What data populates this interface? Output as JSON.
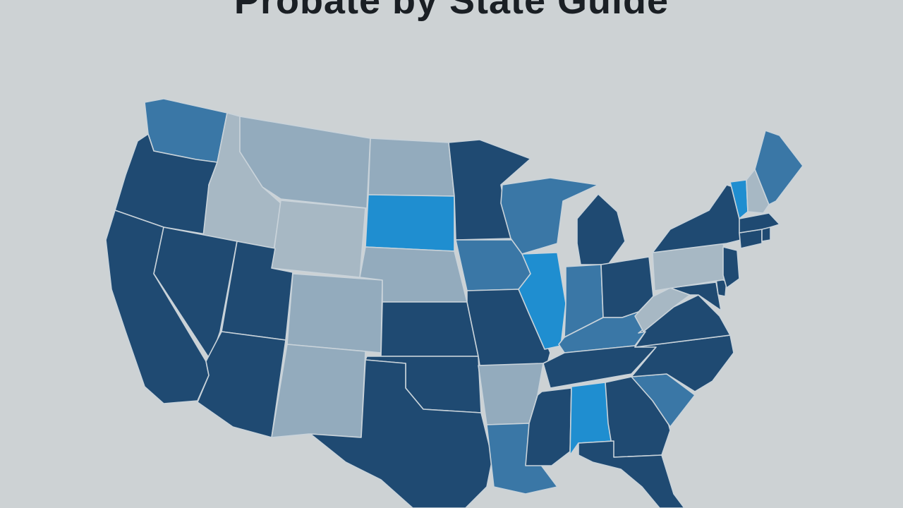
{
  "title": "Probate by State Guide",
  "colors": {
    "background": "#cdd2d4",
    "dark": "#1f4a72",
    "medium": "#3a77a6",
    "bright": "#1f8ed0",
    "light": "#93abbd",
    "pale": "#a7b8c4",
    "border": "#c9d3da"
  },
  "states": [
    {
      "name": "Washington",
      "shade": "medium"
    },
    {
      "name": "Oregon",
      "shade": "dark"
    },
    {
      "name": "California",
      "shade": "dark"
    },
    {
      "name": "Idaho",
      "shade": "pale"
    },
    {
      "name": "Nevada",
      "shade": "dark"
    },
    {
      "name": "Montana",
      "shade": "light"
    },
    {
      "name": "Wyoming",
      "shade": "pale"
    },
    {
      "name": "Utah",
      "shade": "dark"
    },
    {
      "name": "Arizona",
      "shade": "dark"
    },
    {
      "name": "Colorado",
      "shade": "light"
    },
    {
      "name": "New Mexico",
      "shade": "light"
    },
    {
      "name": "North Dakota",
      "shade": "light"
    },
    {
      "name": "South Dakota",
      "shade": "bright"
    },
    {
      "name": "Nebraska",
      "shade": "light"
    },
    {
      "name": "Kansas",
      "shade": "dark"
    },
    {
      "name": "Oklahoma",
      "shade": "dark"
    },
    {
      "name": "Texas",
      "shade": "dark"
    },
    {
      "name": "Minnesota",
      "shade": "dark"
    },
    {
      "name": "Iowa",
      "shade": "medium"
    },
    {
      "name": "Missouri",
      "shade": "dark"
    },
    {
      "name": "Arkansas",
      "shade": "light"
    },
    {
      "name": "Louisiana",
      "shade": "medium"
    },
    {
      "name": "Wisconsin",
      "shade": "medium"
    },
    {
      "name": "Illinois",
      "shade": "bright"
    },
    {
      "name": "Michigan",
      "shade": "dark"
    },
    {
      "name": "Indiana",
      "shade": "medium"
    },
    {
      "name": "Ohio",
      "shade": "dark"
    },
    {
      "name": "Kentucky",
      "shade": "medium"
    },
    {
      "name": "Tennessee",
      "shade": "dark"
    },
    {
      "name": "Mississippi",
      "shade": "dark"
    },
    {
      "name": "Alabama",
      "shade": "bright"
    },
    {
      "name": "Georgia",
      "shade": "dark"
    },
    {
      "name": "Florida",
      "shade": "dark"
    },
    {
      "name": "South Carolina",
      "shade": "medium"
    },
    {
      "name": "North Carolina",
      "shade": "dark"
    },
    {
      "name": "Virginia",
      "shade": "dark"
    },
    {
      "name": "West Virginia",
      "shade": "pale"
    },
    {
      "name": "Maryland",
      "shade": "dark"
    },
    {
      "name": "Delaware",
      "shade": "dark"
    },
    {
      "name": "Pennsylvania",
      "shade": "pale"
    },
    {
      "name": "New Jersey",
      "shade": "dark"
    },
    {
      "name": "New York",
      "shade": "dark"
    },
    {
      "name": "Connecticut",
      "shade": "dark"
    },
    {
      "name": "Rhode Island",
      "shade": "dark"
    },
    {
      "name": "Massachusetts",
      "shade": "dark"
    },
    {
      "name": "Vermont",
      "shade": "bright"
    },
    {
      "name": "New Hampshire",
      "shade": "pale"
    },
    {
      "name": "Maine",
      "shade": "medium"
    }
  ]
}
